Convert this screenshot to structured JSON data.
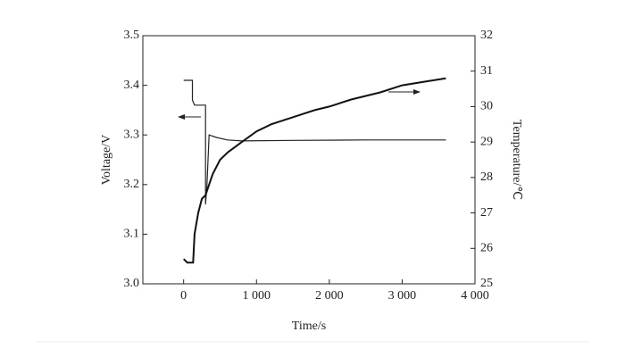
{
  "chart_data": {
    "type": "line",
    "x_label": "Time/s",
    "y_label": "Voltage/V",
    "y2_label": "Temperature/℃",
    "xlim": [
      -560,
      4000
    ],
    "xticks": [
      0,
      {
        "value": 1000,
        "label": "1 000"
      },
      {
        "value": 2000,
        "label": "2 000"
      },
      {
        "value": 3000,
        "label": "3 000"
      },
      {
        "value": 4000,
        "label": "4 000"
      }
    ],
    "ylim": [
      3.0,
      3.5
    ],
    "yticks": [
      {
        "value": 3.0,
        "label": "3.0"
      },
      3.1,
      3.2,
      3.3,
      3.4,
      3.5
    ],
    "y2lim": [
      25,
      32
    ],
    "y2ticks": [
      25,
      26,
      27,
      28,
      29,
      30,
      31,
      32
    ],
    "series": [
      {
        "color": "#222222",
        "axis": "y",
        "x": [
          0,
          120,
          120,
          150,
          300,
          300,
          320,
          350,
          450,
          600,
          800,
          1500,
          2500,
          3600
        ],
        "values": [
          3.41,
          3.41,
          3.37,
          3.36,
          3.36,
          3.16,
          3.2,
          3.3,
          3.295,
          3.29,
          3.288,
          3.289,
          3.29,
          3.29
        ]
      },
      {
        "color": "#111111",
        "axis": "y2",
        "x": [
          0,
          50,
          130,
          150,
          200,
          250,
          300,
          350,
          400,
          500,
          600,
          800,
          1000,
          1200,
          1500,
          1800,
          2000,
          2300,
          2500,
          2700,
          3000,
          3300,
          3600
        ],
        "values": [
          25.7,
          25.6,
          25.6,
          26.4,
          27.0,
          27.4,
          27.5,
          27.8,
          28.1,
          28.5,
          28.7,
          29.0,
          29.3,
          29.5,
          29.7,
          29.9,
          30.0,
          30.2,
          30.3,
          30.4,
          30.6,
          30.7,
          30.8
        ]
      }
    ]
  }
}
